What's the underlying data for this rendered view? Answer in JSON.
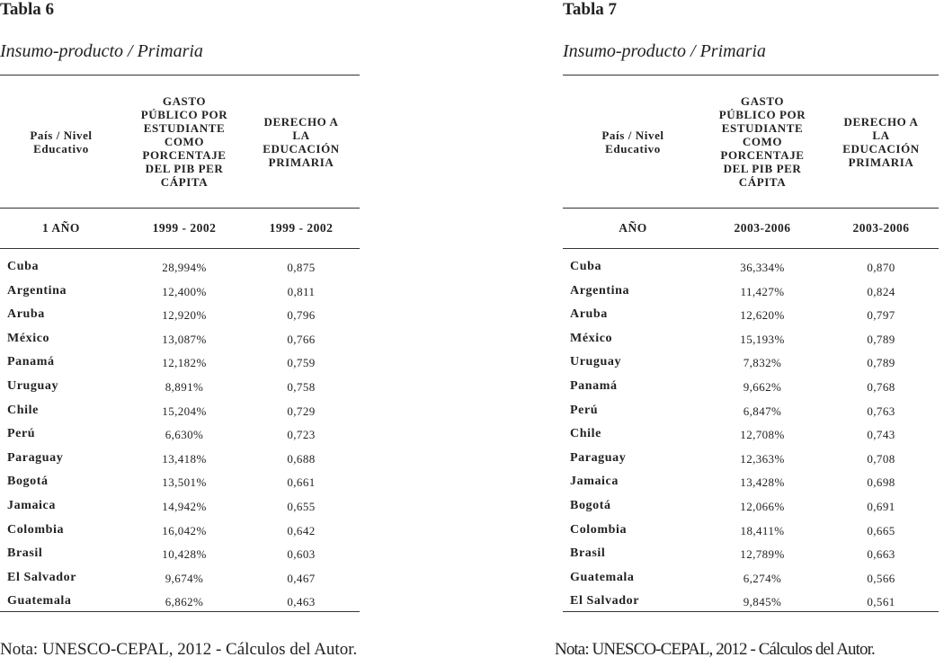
{
  "tables": [
    {
      "label": "Tabla 6",
      "subtitle": "Insumo-producto / Primaria",
      "headers": [
        "País / Nivel Educativo",
        "GASTO PÚBLICO POR ESTUDIANTE COMO PORCENTAJE DEL PIB PER CÁPITA",
        "DERECHO A LA EDUCACIÓN PRIMARIA"
      ],
      "period": [
        "1 AÑO",
        "1999 - 2002",
        "1999 - 2002"
      ],
      "rows": [
        [
          "Cuba",
          "28,994%",
          "0,875"
        ],
        [
          "Argentina",
          "12,400%",
          "0,811"
        ],
        [
          "Aruba",
          "12,920%",
          "0,796"
        ],
        [
          "México",
          "13,087%",
          "0,766"
        ],
        [
          "Panamá",
          "12,182%",
          "0,759"
        ],
        [
          "Uruguay",
          "8,891%",
          "0,758"
        ],
        [
          "Chile",
          "15,204%",
          "0,729"
        ],
        [
          "Perú",
          "6,630%",
          "0,723"
        ],
        [
          "Paraguay",
          "13,418%",
          "0,688"
        ],
        [
          "Bogotá",
          "13,501%",
          "0,661"
        ],
        [
          "Jamaica",
          "14,942%",
          "0,655"
        ],
        [
          "Colombia",
          "16,042%",
          "0,642"
        ],
        [
          "Brasil",
          "10,428%",
          "0,603"
        ],
        [
          "El Salvador",
          "9,674%",
          "0,467"
        ],
        [
          "Guatemala",
          "6,862%",
          "0,463"
        ]
      ],
      "note": "Nota: UNESCO-CEPAL, 2012 - Cálculos del Autor."
    },
    {
      "label": "Tabla 7",
      "subtitle": "Insumo-producto / Primaria",
      "headers": [
        "País / Nivel Educativo",
        "GASTO PÚBLICO POR ESTUDIANTE COMO PORCENTAJE DEL PIB PER CÁPITA",
        "DERECHO A LA EDUCACIÓN PRIMARIA"
      ],
      "period": [
        "AÑO",
        "2003-2006",
        "2003-2006"
      ],
      "rows": [
        [
          "Cuba",
          "36,334%",
          "0,870"
        ],
        [
          "Argentina",
          "11,427%",
          "0,824"
        ],
        [
          "Aruba",
          "12,620%",
          "0,797"
        ],
        [
          "México",
          "15,193%",
          "0,789"
        ],
        [
          "Uruguay",
          "7,832%",
          "0,789"
        ],
        [
          "Panamá",
          "9,662%",
          "0,768"
        ],
        [
          "Perú",
          "6,847%",
          "0,763"
        ],
        [
          "Chile",
          "12,708%",
          "0,743"
        ],
        [
          "Paraguay",
          "12,363%",
          "0,708"
        ],
        [
          "Jamaica",
          "13,428%",
          "0,698"
        ],
        [
          "Bogotá",
          "12,066%",
          "0,691"
        ],
        [
          "Colombia",
          "18,411%",
          "0,665"
        ],
        [
          "Brasil",
          "12,789%",
          "0,663"
        ],
        [
          "Guatemala",
          "6,274%",
          "0,566"
        ],
        [
          "El Salvador",
          "9,845%",
          "0,561"
        ]
      ],
      "note": "Nota: UNESCO-CEPAL, 2012 - Cálculos del Autor."
    }
  ]
}
